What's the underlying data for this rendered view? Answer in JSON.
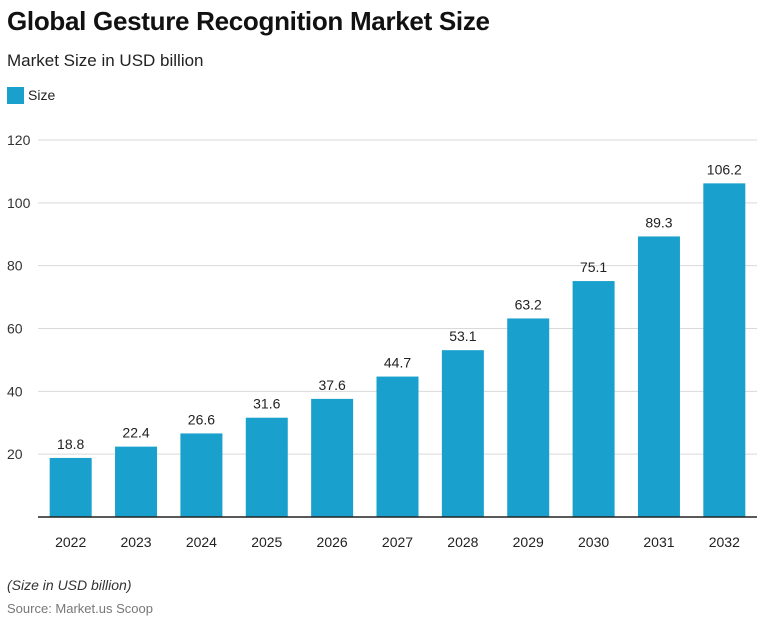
{
  "chart_data": {
    "type": "bar",
    "title": "Global Gesture Recognition Market Size",
    "subtitle": "Market Size in USD billion",
    "categories": [
      "2022",
      "2023",
      "2024",
      "2025",
      "2026",
      "2027",
      "2028",
      "2029",
      "2030",
      "2031",
      "2032"
    ],
    "series": [
      {
        "name": "Size",
        "values": [
          18.8,
          22.4,
          26.6,
          31.6,
          37.6,
          44.7,
          53.1,
          63.2,
          75.1,
          89.3,
          106.2
        ],
        "color": "#1aa0cc"
      }
    ],
    "value_labels": [
      "18.8",
      "22.4",
      "26.6",
      "31.6",
      "37.6",
      "44.7",
      "53.1",
      "63.2",
      "75.1",
      "89.3",
      "106.2"
    ],
    "ylim": [
      0,
      120
    ],
    "yticks": [
      "20",
      "40",
      "60",
      "80",
      "100",
      "120"
    ],
    "grid": true,
    "legend_position": "top-left"
  },
  "footnote": "(Size in USD billion)",
  "source": "Source: Market.us Scoop",
  "colors": {
    "bar": "#1aa0cc",
    "grid": "#d9d9d9",
    "axis": "#222222"
  }
}
